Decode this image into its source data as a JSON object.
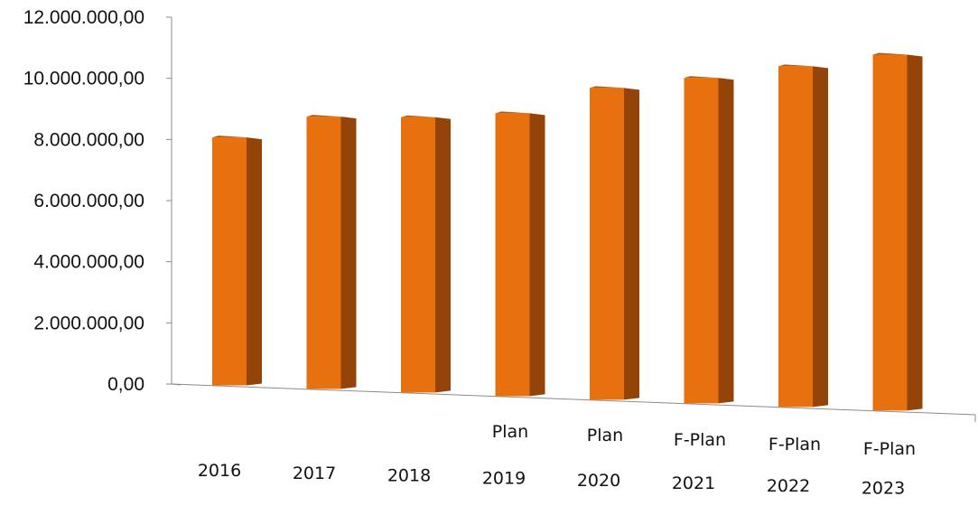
{
  "chart_data": {
    "type": "bar",
    "categories": [
      [
        "",
        "2016"
      ],
      [
        "",
        "2017"
      ],
      [
        "",
        "2018"
      ],
      [
        "Plan",
        "2019"
      ],
      [
        "Plan",
        "2020"
      ],
      [
        "F-Plan",
        "2021"
      ],
      [
        "F-Plan",
        "2022"
      ],
      [
        "F-Plan",
        "2023"
      ]
    ],
    "values": [
      8150000,
      8950000,
      9050000,
      9300000,
      10250000,
      10700000,
      11200000,
      11700000
    ],
    "yticks": [
      {
        "value": 0,
        "label": "0,00"
      },
      {
        "value": 2000000,
        "label": "2.000.000,00"
      },
      {
        "value": 4000000,
        "label": "4.000.000,00"
      },
      {
        "value": 6000000,
        "label": "6.000.000,00"
      },
      {
        "value": 8000000,
        "label": "8.000.000,00"
      },
      {
        "value": 10000000,
        "label": "10.000.000,00"
      },
      {
        "value": 12000000,
        "label": "12.000.000,00"
      }
    ],
    "ylim": [
      0,
      12000000
    ],
    "title": "",
    "xlabel": "",
    "ylabel": "",
    "grid": false,
    "legend": "none",
    "style": "3d-column",
    "colors": {
      "bar_front": "#E8710F",
      "bar_side": "#944408",
      "bar_top": "#B65A0A",
      "axis": "#8c8c8c"
    }
  }
}
